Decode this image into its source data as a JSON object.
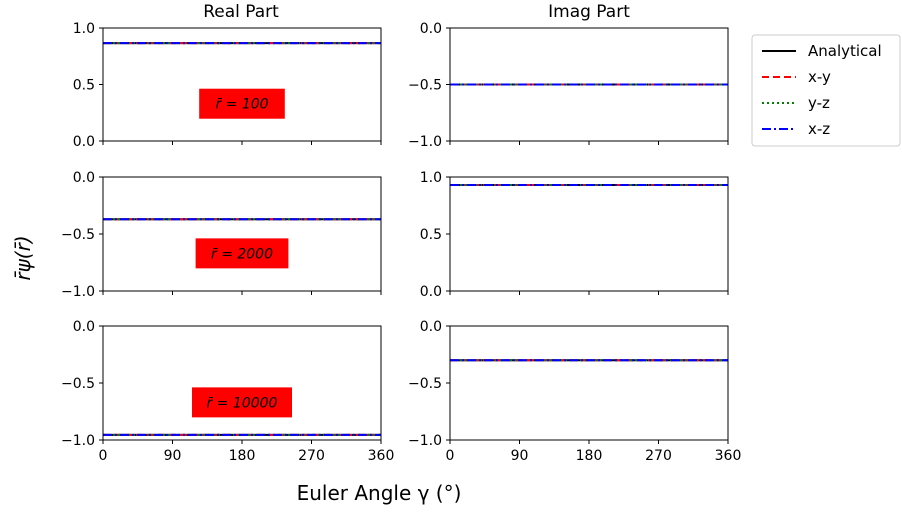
{
  "figure": {
    "col_titles": [
      "Real Part",
      "Imag Part"
    ],
    "xlabel": "Euler Angle γ (°)",
    "ylabel": "r̄ψ(r̄)"
  },
  "legend": {
    "placement": "right, outside top",
    "entries": [
      {
        "label": "Analytical",
        "color": "#000000",
        "style": "solid"
      },
      {
        "label": "x-y",
        "color": "#ff0000",
        "style": "dashed"
      },
      {
        "label": "y-z",
        "color": "#008000",
        "style": "dotted"
      },
      {
        "label": "x-z",
        "color": "#0000ff",
        "style": "dashdot"
      }
    ]
  },
  "colors": {
    "annotation_bg": "#ff0000"
  },
  "chart_data": [
    {
      "type": "line",
      "panel": "row1-real",
      "annotation": "r̄ = 100",
      "x": [
        0,
        90,
        180,
        270,
        360
      ],
      "xlim": [
        0,
        360
      ],
      "xticks": [
        "0",
        "90",
        "180",
        "270",
        "360"
      ],
      "ylim": [
        0.0,
        1.0
      ],
      "yticks": [
        "0.0",
        "0.5",
        "1.0"
      ],
      "series": [
        {
          "name": "Analytical",
          "values": [
            0.866,
            0.866,
            0.866,
            0.866,
            0.866
          ]
        },
        {
          "name": "x-y",
          "values": [
            0.866,
            0.866,
            0.866,
            0.866,
            0.866
          ]
        },
        {
          "name": "y-z",
          "values": [
            0.866,
            0.866,
            0.866,
            0.866,
            0.866
          ]
        },
        {
          "name": "x-z",
          "values": [
            0.866,
            0.866,
            0.866,
            0.866,
            0.866
          ]
        }
      ]
    },
    {
      "type": "line",
      "panel": "row1-imag",
      "x": [
        0,
        90,
        180,
        270,
        360
      ],
      "xlim": [
        0,
        360
      ],
      "xticks": [
        "0",
        "90",
        "180",
        "270",
        "360"
      ],
      "ylim": [
        -1.0,
        0.0
      ],
      "yticks": [
        "−1.0",
        "−0.5",
        "0.0"
      ],
      "series": [
        {
          "name": "Analytical",
          "values": [
            -0.5,
            -0.5,
            -0.5,
            -0.5,
            -0.5
          ]
        },
        {
          "name": "x-y",
          "values": [
            -0.5,
            -0.5,
            -0.5,
            -0.5,
            -0.5
          ]
        },
        {
          "name": "y-z",
          "values": [
            -0.5,
            -0.5,
            -0.5,
            -0.5,
            -0.5
          ]
        },
        {
          "name": "x-z",
          "values": [
            -0.5,
            -0.5,
            -0.5,
            -0.5,
            -0.5
          ]
        }
      ]
    },
    {
      "type": "line",
      "panel": "row2-real",
      "annotation": "r̄ = 2000",
      "x": [
        0,
        90,
        180,
        270,
        360
      ],
      "xlim": [
        0,
        360
      ],
      "xticks": [
        "0",
        "90",
        "180",
        "270",
        "360"
      ],
      "ylim": [
        -1.0,
        0.0
      ],
      "yticks": [
        "−1.0",
        "−0.5",
        "0.0"
      ],
      "series": [
        {
          "name": "Analytical",
          "values": [
            -0.37,
            -0.37,
            -0.37,
            -0.37,
            -0.37
          ]
        },
        {
          "name": "x-y",
          "values": [
            -0.37,
            -0.37,
            -0.37,
            -0.37,
            -0.37
          ]
        },
        {
          "name": "y-z",
          "values": [
            -0.37,
            -0.37,
            -0.37,
            -0.37,
            -0.37
          ]
        },
        {
          "name": "x-z",
          "values": [
            -0.37,
            -0.37,
            -0.37,
            -0.37,
            -0.37
          ]
        }
      ]
    },
    {
      "type": "line",
      "panel": "row2-imag",
      "x": [
        0,
        90,
        180,
        270,
        360
      ],
      "xlim": [
        0,
        360
      ],
      "xticks": [
        "0",
        "90",
        "180",
        "270",
        "360"
      ],
      "ylim": [
        0.0,
        1.0
      ],
      "yticks": [
        "0.0",
        "0.5",
        "1.0"
      ],
      "series": [
        {
          "name": "Analytical",
          "values": [
            0.93,
            0.93,
            0.93,
            0.93,
            0.93
          ]
        },
        {
          "name": "x-y",
          "values": [
            0.93,
            0.93,
            0.93,
            0.93,
            0.93
          ]
        },
        {
          "name": "y-z",
          "values": [
            0.93,
            0.93,
            0.93,
            0.93,
            0.93
          ]
        },
        {
          "name": "x-z",
          "values": [
            0.93,
            0.93,
            0.93,
            0.93,
            0.93
          ]
        }
      ]
    },
    {
      "type": "line",
      "panel": "row3-real",
      "annotation": "r̄ = 10000",
      "x": [
        0,
        90,
        180,
        270,
        360
      ],
      "xlim": [
        0,
        360
      ],
      "xticks": [
        "0",
        "90",
        "180",
        "270",
        "360"
      ],
      "ylim": [
        -1.0,
        0.0
      ],
      "yticks": [
        "−1.0",
        "−0.5",
        "0.0"
      ],
      "series": [
        {
          "name": "Analytical",
          "values": [
            -0.955,
            -0.955,
            -0.955,
            -0.955,
            -0.955
          ]
        },
        {
          "name": "x-y",
          "values": [
            -0.955,
            -0.955,
            -0.955,
            -0.955,
            -0.955
          ]
        },
        {
          "name": "y-z",
          "values": [
            -0.955,
            -0.955,
            -0.955,
            -0.955,
            -0.955
          ]
        },
        {
          "name": "x-z",
          "values": [
            -0.955,
            -0.955,
            -0.955,
            -0.955,
            -0.955
          ]
        }
      ]
    },
    {
      "type": "line",
      "panel": "row3-imag",
      "x": [
        0,
        90,
        180,
        270,
        360
      ],
      "xlim": [
        0,
        360
      ],
      "xticks": [
        "0",
        "90",
        "180",
        "270",
        "360"
      ],
      "ylim": [
        -1.0,
        0.0
      ],
      "yticks": [
        "−1.0",
        "−0.5",
        "0.0"
      ],
      "series": [
        {
          "name": "Analytical",
          "values": [
            -0.3,
            -0.3,
            -0.3,
            -0.3,
            -0.3
          ]
        },
        {
          "name": "x-y",
          "values": [
            -0.3,
            -0.3,
            -0.3,
            -0.3,
            -0.3
          ]
        },
        {
          "name": "y-z",
          "values": [
            -0.3,
            -0.3,
            -0.3,
            -0.3,
            -0.3
          ]
        },
        {
          "name": "x-z",
          "values": [
            -0.3,
            -0.3,
            -0.3,
            -0.3,
            -0.3
          ]
        }
      ]
    }
  ]
}
